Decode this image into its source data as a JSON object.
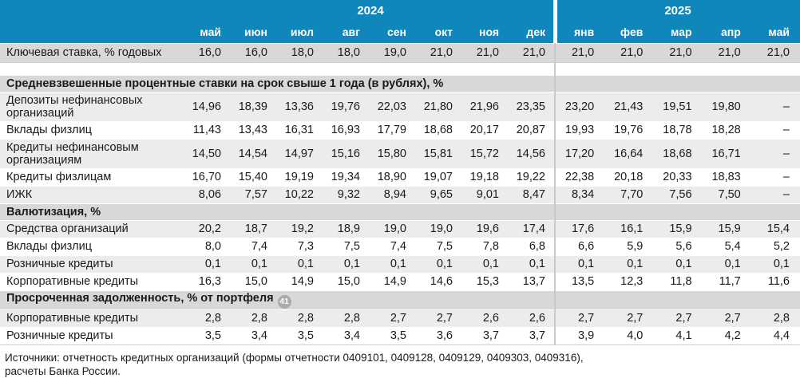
{
  "header": {
    "year_groups": [
      {
        "label": "2024",
        "colspan": 8
      },
      {
        "label": "2025",
        "colspan": 5
      }
    ],
    "months": [
      "май",
      "июн",
      "июл",
      "авг",
      "сен",
      "окт",
      "ноя",
      "дек",
      "янв",
      "фев",
      "мар",
      "апр",
      "май"
    ]
  },
  "key_rate_row": {
    "label": "Ключевая ставка, % годовых",
    "values": [
      "16,0",
      "16,0",
      "18,0",
      "18,0",
      "19,0",
      "21,0",
      "21,0",
      "21,0",
      "21,0",
      "21,0",
      "21,0",
      "21,0",
      "21,0"
    ]
  },
  "sections": [
    {
      "title": "Средневзвешенные процентные ставки на срок свыше 1 года (в рублях), %",
      "rows": [
        {
          "label": "Депозиты нефинансовых организаций",
          "values": [
            "14,96",
            "18,39",
            "13,36",
            "19,76",
            "22,03",
            "21,80",
            "21,96",
            "23,35",
            "23,20",
            "21,43",
            "19,51",
            "19,80",
            "–"
          ]
        },
        {
          "label": "Вклады физлиц",
          "values": [
            "11,43",
            "13,43",
            "16,31",
            "16,93",
            "17,79",
            "18,68",
            "20,17",
            "20,87",
            "19,93",
            "19,76",
            "18,78",
            "18,28",
            "–"
          ]
        },
        {
          "label": "Кредиты нефинансовым организациям",
          "values": [
            "14,50",
            "14,54",
            "14,97",
            "15,16",
            "15,80",
            "15,81",
            "15,72",
            "14,56",
            "17,20",
            "16,64",
            "18,68",
            "16,71",
            "–"
          ]
        },
        {
          "label": "Кредиты физлицам",
          "values": [
            "16,70",
            "15,40",
            "19,19",
            "19,34",
            "18,90",
            "19,07",
            "19,18",
            "19,22",
            "22,38",
            "20,18",
            "20,33",
            "18,83",
            "–"
          ]
        },
        {
          "label": "ИЖК",
          "values": [
            "8,06",
            "7,57",
            "10,22",
            "9,32",
            "8,94",
            "9,65",
            "9,01",
            "8,47",
            "8,34",
            "7,70",
            "7,56",
            "7,50",
            "–"
          ]
        }
      ]
    },
    {
      "title": "Валютизация, %",
      "rows": [
        {
          "label": "Средства организаций",
          "values": [
            "20,2",
            "18,7",
            "19,2",
            "18,9",
            "19,0",
            "19,0",
            "19,6",
            "17,4",
            "17,6",
            "16,1",
            "15,9",
            "15,9",
            "15,4"
          ]
        },
        {
          "label": "Вклады физлиц",
          "values": [
            "8,0",
            "7,4",
            "7,3",
            "7,5",
            "7,4",
            "7,5",
            "7,8",
            "6,8",
            "6,6",
            "5,9",
            "5,6",
            "5,4",
            "5,2"
          ]
        },
        {
          "label": "Розничные кредиты",
          "values": [
            "0,1",
            "0,1",
            "0,1",
            "0,1",
            "0,1",
            "0,1",
            "0,1",
            "0,1",
            "0,1",
            "0,1",
            "0,1",
            "0,1",
            "0,1"
          ]
        },
        {
          "label": "Корпоративные кредиты",
          "values": [
            "16,3",
            "15,0",
            "14,9",
            "15,0",
            "14,9",
            "14,6",
            "15,3",
            "13,7",
            "13,5",
            "12,3",
            "11,8",
            "11,7",
            "11,6"
          ]
        }
      ]
    },
    {
      "title": "Просроченная задолженность, % от портфеля",
      "footnote": "41",
      "rows": [
        {
          "label": "Корпоративные кредиты",
          "values": [
            "2,8",
            "2,8",
            "2,8",
            "2,8",
            "2,7",
            "2,7",
            "2,6",
            "2,6",
            "2,7",
            "2,7",
            "2,7",
            "2,7",
            "2,8"
          ]
        },
        {
          "label": "Розничные кредиты",
          "values": [
            "3,5",
            "3,4",
            "3,5",
            "3,4",
            "3,5",
            "3,6",
            "3,7",
            "3,7",
            "3,9",
            "4,0",
            "4,1",
            "4,2",
            "4,4"
          ]
        }
      ]
    }
  ],
  "footer": {
    "line1": "Источники: отчетность кредитных организаций (формы отчетности 0409101, 0409128, 0409129, 0409303, 0409316),",
    "line2": "расчеты Банка России."
  },
  "colors": {
    "header_blue": "#0F87BA",
    "section_gray": "#D8D8D8",
    "row_alt_gray": "#ECECEC",
    "year_divider_gray": "#C9C9C9",
    "footnote_badge_gray": "#ABABAB",
    "text": "#1A1A1A"
  }
}
